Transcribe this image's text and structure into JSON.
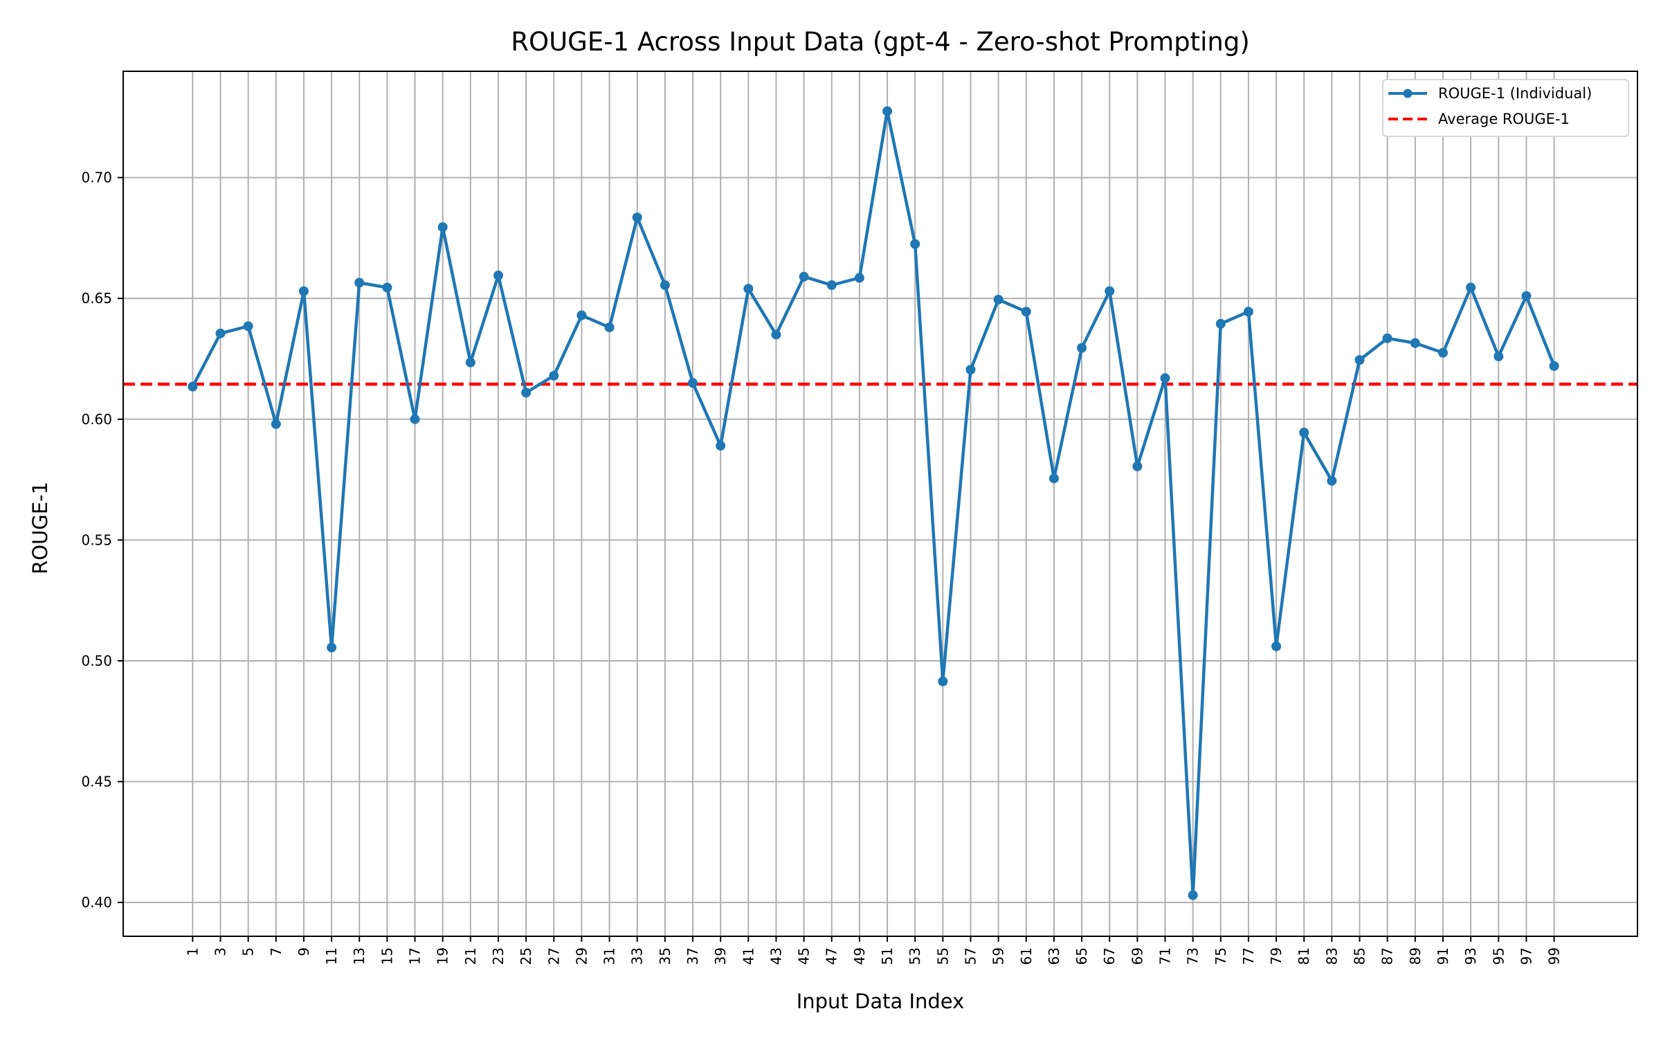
{
  "chart_data": {
    "type": "line",
    "title": "ROUGE-1 Across Input Data (gpt-4 - Zero-shot Prompting)",
    "xlabel": "Input Data Index",
    "ylabel": "ROUGE-1",
    "x": [
      1,
      3,
      5,
      7,
      9,
      11,
      13,
      15,
      17,
      19,
      21,
      23,
      25,
      27,
      29,
      31,
      33,
      35,
      37,
      39,
      41,
      43,
      45,
      47,
      49,
      51,
      53,
      55,
      57,
      59,
      61,
      63,
      65,
      67,
      69,
      71,
      73,
      75,
      77,
      79,
      81,
      83,
      85,
      87,
      89,
      91,
      93,
      95,
      97,
      99
    ],
    "xticks": [
      "1",
      "3",
      "5",
      "7",
      "9",
      "11",
      "13",
      "15",
      "17",
      "19",
      "21",
      "23",
      "25",
      "27",
      "29",
      "31",
      "33",
      "35",
      "37",
      "39",
      "41",
      "43",
      "45",
      "47",
      "49",
      "51",
      "53",
      "55",
      "57",
      "59",
      "61",
      "63",
      "65",
      "67",
      "69",
      "71",
      "73",
      "75",
      "77",
      "79",
      "81",
      "83",
      "85",
      "87",
      "89",
      "91",
      "93",
      "95",
      "97",
      "99"
    ],
    "yticks": [
      "0.40",
      "0.45",
      "0.50",
      "0.55",
      "0.60",
      "0.65",
      "0.70"
    ],
    "ylim": [
      0.386,
      0.744
    ],
    "xlim": [
      -4,
      105
    ],
    "series": [
      {
        "name": "ROUGE-1 (Individual)",
        "color": "#1f77b4",
        "style": "solid-with-markers",
        "values": [
          0.6135,
          0.6355,
          0.6385,
          0.598,
          0.653,
          0.5055,
          0.6565,
          0.6545,
          0.6,
          0.6795,
          0.6235,
          0.6595,
          0.611,
          0.618,
          0.643,
          0.638,
          0.6835,
          0.6555,
          0.615,
          0.589,
          0.654,
          0.635,
          0.659,
          0.6555,
          0.6585,
          0.7275,
          0.6725,
          0.4915,
          0.6205,
          0.6495,
          0.6445,
          0.5755,
          0.6295,
          0.653,
          0.5805,
          0.617,
          0.403,
          0.6395,
          0.6445,
          0.506,
          0.5945,
          0.5745,
          0.6245,
          0.6335,
          0.6315,
          0.6275,
          0.6545,
          0.626,
          0.651,
          0.622
        ]
      },
      {
        "name": "Average ROUGE-1",
        "color": "#ff0000",
        "style": "dashed",
        "value": 0.6145
      }
    ],
    "grid": true,
    "legend_position": "top-right"
  }
}
